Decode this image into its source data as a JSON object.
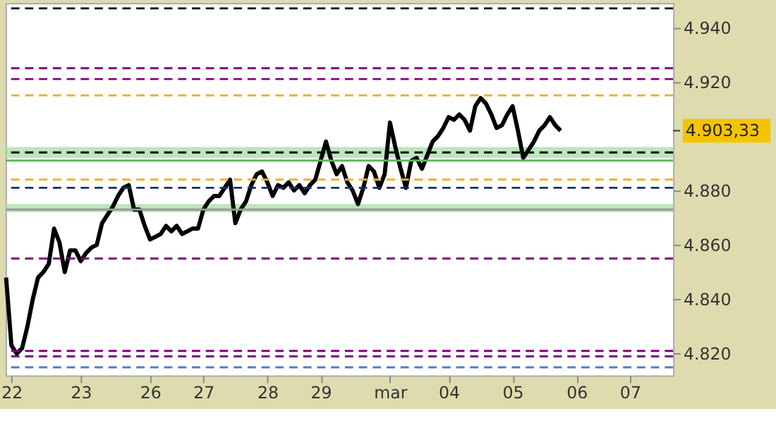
{
  "chart_data": {
    "type": "line",
    "categories": [
      null,
      "22",
      null,
      null,
      null,
      null,
      null,
      null,
      null,
      null,
      null,
      null,
      null,
      null,
      "23",
      null,
      null,
      null,
      null,
      null,
      null,
      null,
      null,
      null,
      null,
      null,
      null,
      "26",
      null,
      null,
      null,
      null,
      null,
      null,
      null,
      null,
      null,
      "27",
      null,
      null,
      null,
      null,
      null,
      null,
      null,
      null,
      null,
      null,
      null,
      "28",
      null,
      null,
      null,
      null,
      null,
      null,
      null,
      null,
      null,
      "29",
      null,
      null,
      null,
      null,
      null,
      null,
      null,
      null,
      null,
      null,
      null,
      null,
      "mar",
      null,
      null,
      null,
      null,
      null,
      null,
      null,
      null,
      null,
      null,
      "04",
      null,
      null,
      null,
      null,
      null,
      null,
      null,
      null,
      null,
      null,
      null,
      "05",
      null,
      null,
      null,
      null,
      null,
      null,
      null,
      null,
      null,
      null,
      null,
      "06",
      null,
      null,
      null,
      null,
      null,
      null,
      null,
      null,
      null,
      "07",
      null,
      null,
      null,
      null,
      null,
      null,
      null,
      null
    ],
    "series": [
      {
        "color": "#000000",
        "values": [
          4848,
          4823,
          4820,
          4822,
          4830,
          4840,
          4848,
          4850,
          4853,
          4866,
          4861,
          4850,
          4858,
          4858,
          4854,
          4857,
          4859,
          4860,
          4868,
          4871,
          4874,
          4878,
          4881,
          4882,
          4873,
          4873,
          4867,
          4862,
          4863,
          4864,
          4867,
          4865,
          4867,
          4864,
          4865,
          4866,
          4866,
          4873,
          4876,
          4878,
          4878,
          4881,
          4884,
          4868,
          4873,
          4876,
          4882,
          4886,
          4887,
          4883,
          4878,
          4882,
          4881,
          4883,
          4880,
          4882,
          4879,
          4882,
          4884,
          4891,
          4898,
          4891,
          4886,
          4889,
          4883,
          4880,
          4875,
          4881,
          4889,
          4887,
          4881,
          4886,
          4905,
          4896,
          4888,
          4881,
          4891,
          4892,
          4888,
          4893,
          4898,
          4900,
          4903,
          4907,
          4906,
          4908,
          4906,
          4902,
          4911,
          4914,
          4912,
          4908,
          4903,
          4904,
          4908,
          4911,
          4902,
          4892,
          4895,
          4898,
          4902,
          4904,
          4907,
          4904,
          4902,
          null,
          null,
          null,
          null,
          null,
          null,
          null,
          null,
          null,
          null,
          null,
          null,
          null,
          null,
          null,
          null,
          null,
          null,
          null,
          null,
          null
        ]
      }
    ],
    "ylim": [
      4812,
      4949
    ],
    "yticks": [
      {
        "value": 4820,
        "label": "4.820"
      },
      {
        "value": 4840,
        "label": "4.840"
      },
      {
        "value": 4860,
        "label": "4.860"
      },
      {
        "value": 4880,
        "label": "4.880"
      },
      {
        "value": 4920,
        "label": "4.920"
      },
      {
        "value": 4940,
        "label": "4.940"
      }
    ],
    "ref_lines": [
      {
        "axis": "y",
        "value": 4947,
        "color": "#000000",
        "line_style": "dashed"
      },
      {
        "axis": "y",
        "value": 4894,
        "color": "#000000",
        "line_style": "dashed"
      },
      {
        "axis": "y",
        "value": 4873,
        "color": "#999999",
        "line_style": "solid"
      },
      {
        "axis": "y",
        "value": 4925,
        "color": "#800080",
        "line_style": "dashed"
      },
      {
        "axis": "y",
        "value": 4921,
        "color": "#800080",
        "line_style": "dashed"
      },
      {
        "axis": "y",
        "value": 4915,
        "color": "#f0b030",
        "line_style": "dashed"
      },
      {
        "axis": "y",
        "value": 4891,
        "color": "#5cb85c",
        "line_style": "solid"
      },
      {
        "axis": "y",
        "value": 4884,
        "color": "#f0b030",
        "line_style": "dashed"
      },
      {
        "axis": "y",
        "value": 4881,
        "color": "#1f2a6b",
        "line_style": "dashed"
      },
      {
        "axis": "y",
        "value": 4855,
        "color": "#800080",
        "line_style": "dashed"
      },
      {
        "axis": "y",
        "value": 4821,
        "color": "#800080",
        "line_style": "dashed"
      },
      {
        "axis": "y",
        "value": 4819,
        "color": "#800080",
        "line_style": "dashed"
      },
      {
        "axis": "y",
        "value": 4815,
        "color": "#4a7fd0",
        "line_style": "dashed"
      }
    ],
    "annotations": [
      "4.903,33"
    ],
    "bands": [
      {
        "axis": "y",
        "from": 4892,
        "to": 4896,
        "color": "#9fdc9f"
      },
      {
        "axis": "y",
        "from": 4872,
        "to": 4875,
        "color": "#9fdc9f"
      }
    ],
    "grid": false,
    "line_style": "solid",
    "marker": "none"
  }
}
